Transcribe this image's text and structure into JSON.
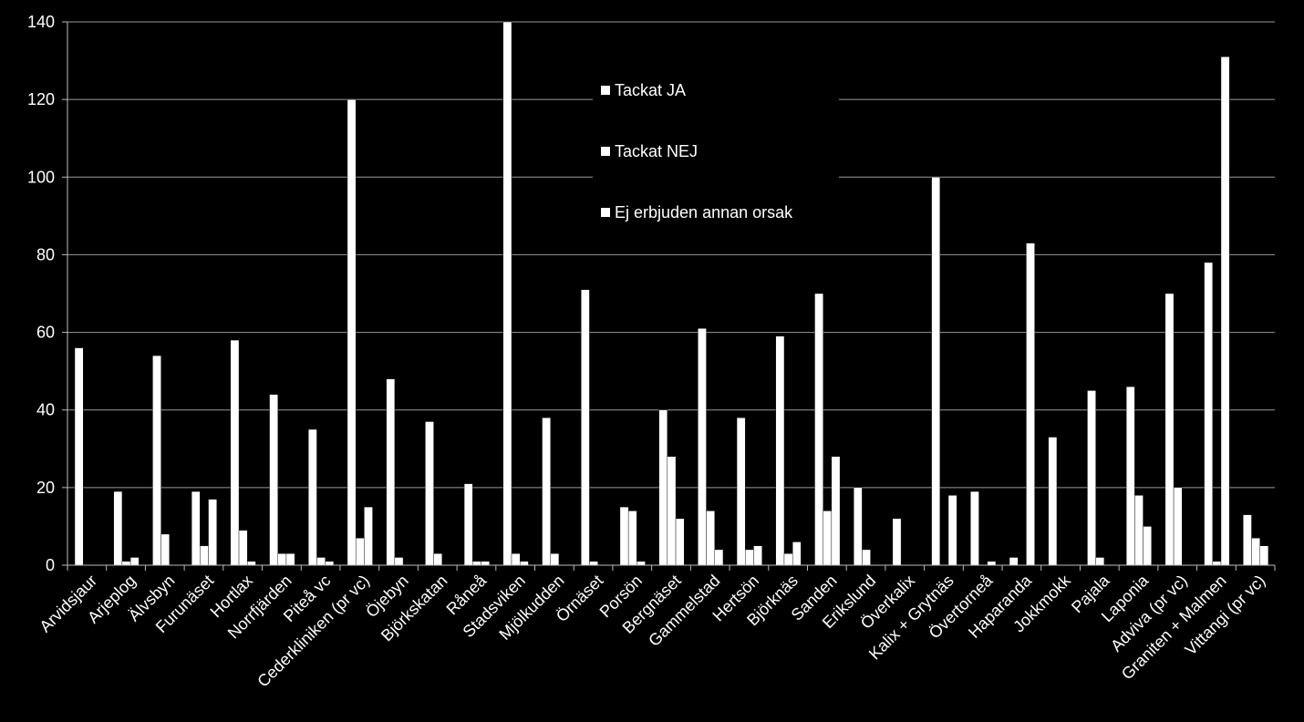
{
  "chart_data": {
    "type": "bar",
    "title": "",
    "xlabel": "",
    "ylabel": "",
    "ylim": [
      0,
      140
    ],
    "yticks": [
      "0",
      "20",
      "40",
      "60",
      "80",
      "100",
      "120",
      "140"
    ],
    "grid": "horizontal",
    "legend_position": "top-center",
    "bar_color": "#ffffff",
    "background": "#000000",
    "categories": [
      "Arvidsjaur",
      "Arjeplog",
      "Älvsbyn",
      "Furunäset",
      "Hortlax",
      "Norrfjärden",
      "Piteå vc",
      "Cederkliniken (pr vc)",
      "Öjebyn",
      "Björkskatan",
      "Råneå",
      "Stadsviken",
      "Mjölkudden",
      "Örnäset",
      "Porsön",
      "Bergnäset",
      "Gammelstad",
      "Hertsön",
      "Björknäs",
      "Sanden",
      "Erikslund",
      "Överkalix",
      "Kalix + Grytnäs",
      "Övertorneå",
      "Haparanda",
      "Jokkmokk",
      "Pajala",
      "Laponia",
      "Adviva (pr vc)",
      "Graniten +  Malmen",
      "Vittangi (pr vc)"
    ],
    "series": [
      {
        "name": "Tackat JA",
        "values": [
          56,
          19,
          54,
          19,
          58,
          44,
          35,
          120,
          48,
          37,
          21,
          140,
          38,
          71,
          15,
          40,
          61,
          38,
          59,
          70,
          20,
          12,
          100,
          19,
          2,
          33,
          45,
          46,
          70,
          78,
          13
        ]
      },
      {
        "name": "Tackat NEJ",
        "values": [
          0,
          1,
          8,
          5,
          9,
          3,
          2,
          7,
          2,
          3,
          1,
          3,
          3,
          1,
          14,
          28,
          14,
          4,
          3,
          14,
          4,
          0,
          0,
          0,
          0,
          0,
          2,
          18,
          20,
          1,
          7
        ]
      },
      {
        "name": "Ej erbjuden annan orsak",
        "values": [
          0,
          2,
          0,
          17,
          1,
          3,
          1,
          15,
          0,
          0,
          1,
          1,
          0,
          0,
          1,
          12,
          4,
          5,
          6,
          28,
          0,
          0,
          18,
          1,
          83,
          0,
          0,
          10,
          0,
          131,
          5
        ]
      }
    ]
  }
}
